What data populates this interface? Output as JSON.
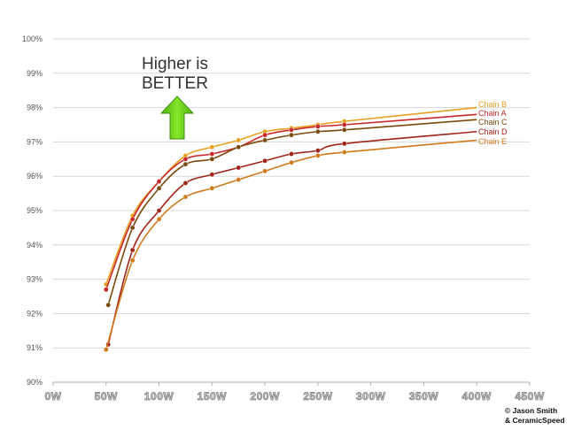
{
  "annotation": {
    "line1": "Higher is",
    "line2": "BETTER"
  },
  "credit": {
    "line1": "© Jason Smith",
    "line2": "& CeramicSpeed"
  },
  "colors": {
    "chain_b": "#e8a020",
    "chain_a": "#c8282a",
    "chain_c": "#7a4a0c",
    "chain_d": "#a02418",
    "chain_e": "#d07a1c",
    "arrow": "#66cc1a",
    "grid": "#d8d8d8"
  },
  "chart_data": {
    "type": "line",
    "xlabel": "",
    "ylabel": "",
    "xlim": [
      0,
      450
    ],
    "ylim": [
      90,
      100
    ],
    "x_tick_labels": [
      "0W",
      "50W",
      "100W",
      "150W",
      "200W",
      "250W",
      "300W",
      "350W",
      "400W",
      "450W"
    ],
    "y_tick_labels": [
      "90%",
      "91%",
      "92%",
      "93%",
      "94%",
      "95%",
      "96%",
      "97%",
      "98%",
      "99%",
      "100%"
    ],
    "grid": true,
    "legend": "right end of lines",
    "series": [
      {
        "name": "Chain B",
        "color": "#e8a020",
        "x": [
          50,
          75,
          100,
          125,
          150,
          175,
          200,
          225,
          250,
          275,
          400
        ],
        "y": [
          92.85,
          94.85,
          95.85,
          96.6,
          96.85,
          97.05,
          97.3,
          97.4,
          97.5,
          97.6,
          98.0
        ],
        "markers_up_to": 275
      },
      {
        "name": "Chain A",
        "color": "#c8282a",
        "x": [
          50,
          75,
          100,
          125,
          150,
          175,
          200,
          225,
          250,
          275,
          400
        ],
        "y": [
          92.7,
          94.75,
          95.85,
          96.5,
          96.65,
          96.85,
          97.2,
          97.35,
          97.45,
          97.5,
          97.8
        ],
        "markers_up_to": 275
      },
      {
        "name": "Chain C",
        "color": "#7a4a0c",
        "x": [
          52,
          75,
          100,
          125,
          150,
          175,
          200,
          225,
          250,
          275,
          400
        ],
        "y": [
          92.25,
          94.5,
          95.65,
          96.35,
          96.5,
          96.85,
          97.05,
          97.2,
          97.3,
          97.35,
          97.65
        ],
        "markers_up_to": 275
      },
      {
        "name": "Chain D",
        "color": "#a02418",
        "x": [
          52,
          75,
          100,
          125,
          150,
          175,
          200,
          225,
          250,
          275,
          400
        ],
        "y": [
          91.1,
          93.85,
          95.0,
          95.8,
          96.05,
          96.25,
          96.45,
          96.65,
          96.75,
          96.95,
          97.3
        ],
        "markers_up_to": 275
      },
      {
        "name": "Chain E",
        "color": "#d07a1c",
        "x": [
          50,
          75,
          100,
          125,
          150,
          175,
          200,
          225,
          250,
          275,
          400
        ],
        "y": [
          90.95,
          93.55,
          94.75,
          95.4,
          95.65,
          95.9,
          96.15,
          96.4,
          96.6,
          96.7,
          97.05
        ],
        "markers_up_to": 275
      }
    ]
  }
}
